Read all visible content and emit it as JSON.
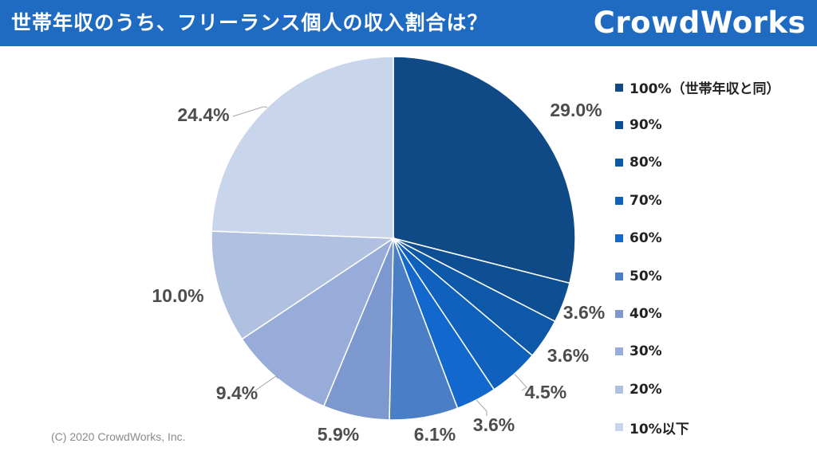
{
  "header": {
    "title": "世帯年収のうち、フリーランス個人の収入割合は？",
    "logo": "CrowdWorks"
  },
  "copyright": "(C) 2020 CrowdWorks, Inc.",
  "chart_data": {
    "type": "pie",
    "title": "世帯年収のうち、フリーランス個人の収入割合は？",
    "start": "12 o'clock, clockwise",
    "legend_position": "right",
    "series": [
      {
        "label": "100%（世帯年収と同）",
        "value": 29.0,
        "display": "29.0%",
        "color": "#0f4a86"
      },
      {
        "label": "90%",
        "value": 3.6,
        "display": "3.6%",
        "color": "#0e4f93"
      },
      {
        "label": "80%",
        "value": 3.6,
        "display": "3.6%",
        "color": "#0d58a8"
      },
      {
        "label": "70%",
        "value": 4.5,
        "display": "4.5%",
        "color": "#0f61bd"
      },
      {
        "label": "60%",
        "value": 3.6,
        "display": "3.6%",
        "color": "#1268cc"
      },
      {
        "label": "50%",
        "value": 6.1,
        "display": "6.1%",
        "color": "#4a7fc7"
      },
      {
        "label": "40%",
        "value": 5.9,
        "display": "5.9%",
        "color": "#7d98cf"
      },
      {
        "label": "30%",
        "value": 9.4,
        "display": "9.4%",
        "color": "#97acd8"
      },
      {
        "label": "20%",
        "value": 10.0,
        "display": "10.0%",
        "color": "#afc0e0"
      },
      {
        "label": "10%以下",
        "value": 24.4,
        "display": "24.4%",
        "color": "#c9d5eb"
      }
    ]
  }
}
